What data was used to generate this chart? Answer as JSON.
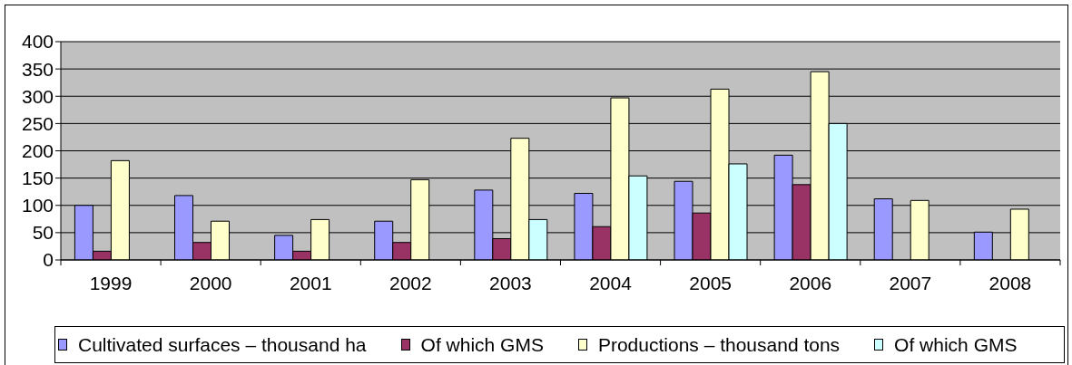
{
  "chart_data": {
    "type": "bar",
    "categories": [
      "1999",
      "2000",
      "2001",
      "2002",
      "2003",
      "2004",
      "2005",
      "2006",
      "2007",
      "2008"
    ],
    "series": [
      {
        "name": "Cultivated surfaces – thousand ha",
        "color": "#9999ff",
        "values": [
          100,
          118,
          45,
          71,
          128,
          122,
          144,
          192,
          112,
          51
        ]
      },
      {
        "name": "Of which GMS",
        "color": "#993366",
        "values": [
          16,
          32,
          16,
          32,
          39,
          61,
          86,
          138,
          null,
          null
        ]
      },
      {
        "name": "Productions – thousand tons",
        "color": "#ffffcc",
        "values": [
          182,
          71,
          74,
          147,
          223,
          297,
          313,
          345,
          109,
          93
        ]
      },
      {
        "name": "Of which GMS",
        "color": "#ccffff",
        "values": [
          null,
          null,
          null,
          null,
          74,
          154,
          176,
          250,
          null,
          null
        ]
      }
    ],
    "ylim": [
      0,
      400
    ],
    "yticks": [
      0,
      50,
      100,
      150,
      200,
      250,
      300,
      350,
      400
    ],
    "grid": "y",
    "legend": "bottom"
  }
}
